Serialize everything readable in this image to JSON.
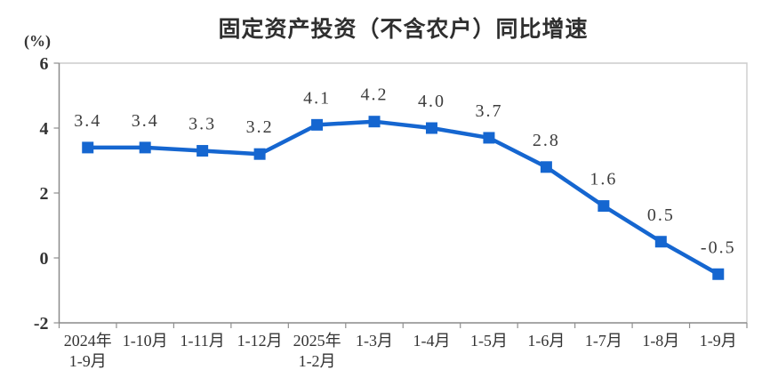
{
  "chart_data": {
    "type": "line",
    "title": "固定资产投资（不含农户）同比增速",
    "unit_label": "(%)",
    "series_name": "固定资产投资（不含农户）同比增速",
    "categories": [
      [
        "2024年",
        "1-9月"
      ],
      [
        "1-10月"
      ],
      [
        "1-11月"
      ],
      [
        "1-12月"
      ],
      [
        "2025年",
        "1-2月"
      ],
      [
        "1-3月"
      ],
      [
        "1-4月"
      ],
      [
        "1-5月"
      ],
      [
        "1-6月"
      ],
      [
        "1-7月"
      ],
      [
        "1-8月"
      ],
      [
        "1-9月"
      ]
    ],
    "values": [
      3.4,
      3.4,
      3.3,
      3.2,
      4.1,
      4.2,
      4.0,
      3.7,
      2.8,
      1.6,
      0.5,
      -0.5
    ],
    "point_labels": [
      "3.4",
      "3.4",
      "3.3",
      "3.2",
      "4.1",
      "4.2",
      "4.0",
      "3.7",
      "2.8",
      "1.6",
      "0.5",
      "-0.5"
    ],
    "ylim": [
      -2,
      6
    ],
    "yticks": [
      {
        "value": 6,
        "label": "6"
      },
      {
        "value": 4,
        "label": "4"
      },
      {
        "value": 2,
        "label": "2"
      },
      {
        "value": 0,
        "label": "0"
      },
      {
        "value": -2,
        "label": "-2"
      }
    ],
    "grid": false,
    "legend_position": "none",
    "colors": {
      "line": "#1566d0",
      "marker": "#1566d0",
      "axis": "#8a8a8a",
      "plot_border": "#cccccc",
      "tick": "#8f8f8f",
      "text": "#333333",
      "point_label_text": "#3d3d3d",
      "title_text": "#2f2f2f",
      "background": "#ffffff"
    }
  }
}
